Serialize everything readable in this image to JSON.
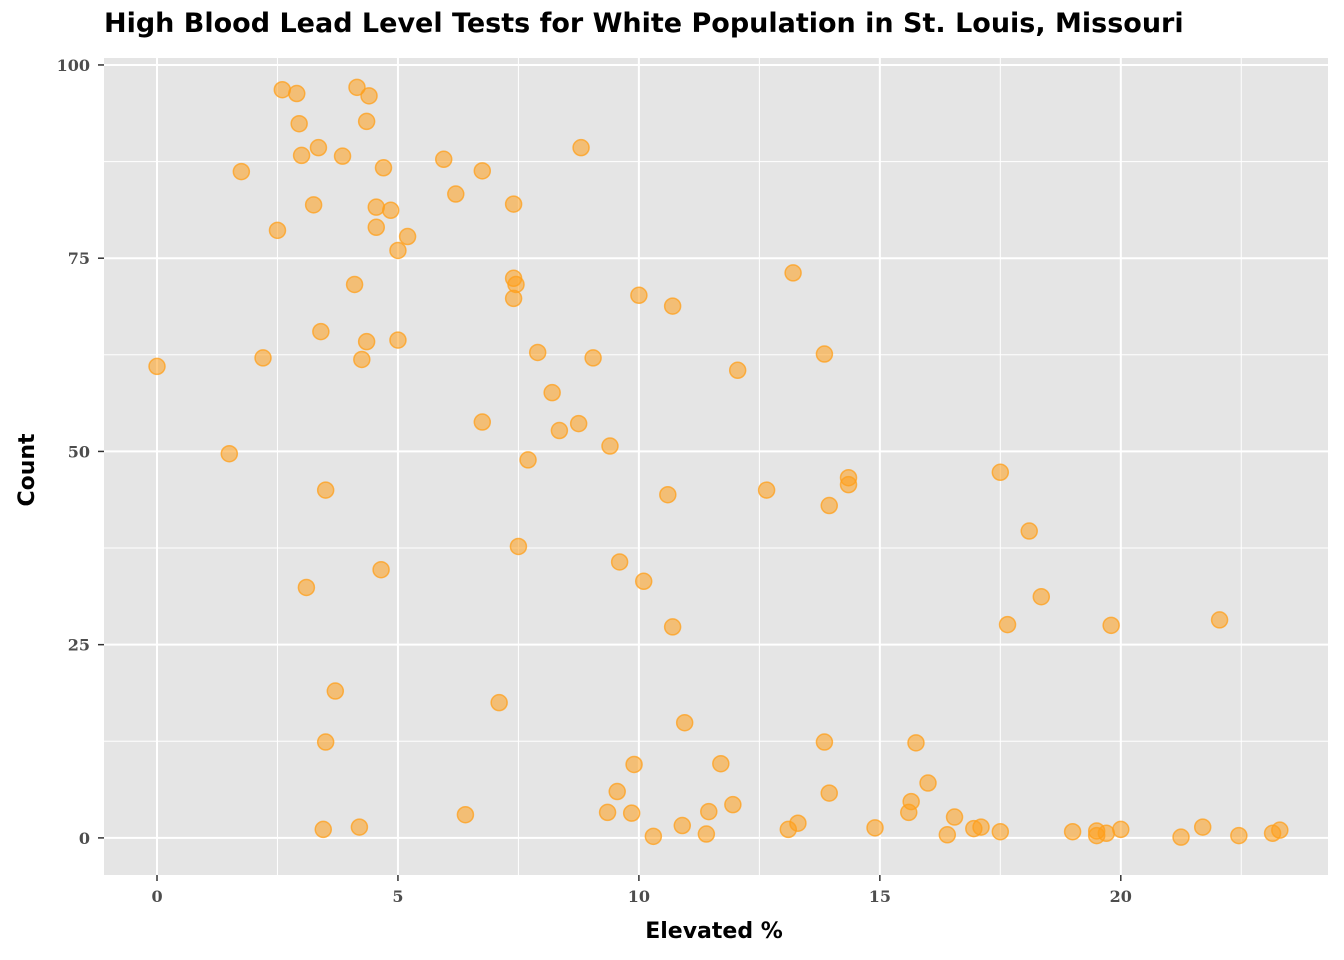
{
  "chart_data": {
    "type": "scatter",
    "title": "High Blood Lead Level Tests for White Population in St. Louis, Missouri",
    "xlabel": "Elevated %",
    "ylabel": "Count",
    "xlim": [
      -1.1,
      24.3
    ],
    "ylim": [
      -4.8,
      100.9
    ],
    "xticks": [
      0,
      5,
      10,
      15,
      20
    ],
    "yticks": [
      0,
      25,
      50,
      75,
      100
    ],
    "grid": true,
    "point_color": "#ff9f1a",
    "panel_background": "#e5e5e5",
    "points": [
      [
        0.0,
        61.0
      ],
      [
        1.5,
        49.7
      ],
      [
        1.75,
        86.2
      ],
      [
        2.2,
        62.1
      ],
      [
        2.5,
        78.6
      ],
      [
        2.6,
        96.8
      ],
      [
        2.9,
        96.3
      ],
      [
        2.95,
        92.4
      ],
      [
        3.0,
        88.3
      ],
      [
        3.1,
        32.4
      ],
      [
        3.25,
        81.9
      ],
      [
        3.35,
        89.3
      ],
      [
        3.4,
        65.5
      ],
      [
        3.45,
        1.1
      ],
      [
        3.5,
        12.4
      ],
      [
        3.5,
        45.0
      ],
      [
        3.7,
        19.0
      ],
      [
        3.85,
        88.2
      ],
      [
        4.1,
        71.6
      ],
      [
        4.15,
        97.1
      ],
      [
        4.2,
        1.4
      ],
      [
        4.25,
        61.9
      ],
      [
        4.35,
        92.7
      ],
      [
        4.35,
        64.2
      ],
      [
        4.4,
        96.0
      ],
      [
        4.55,
        81.6
      ],
      [
        4.55,
        79.0
      ],
      [
        4.65,
        34.7
      ],
      [
        4.7,
        86.7
      ],
      [
        4.85,
        81.2
      ],
      [
        5.0,
        76.0
      ],
      [
        5.0,
        64.4
      ],
      [
        5.2,
        77.8
      ],
      [
        5.95,
        87.8
      ],
      [
        6.2,
        83.3
      ],
      [
        6.4,
        3.0
      ],
      [
        6.75,
        53.8
      ],
      [
        6.75,
        86.3
      ],
      [
        7.1,
        17.5
      ],
      [
        7.4,
        82.0
      ],
      [
        7.4,
        72.4
      ],
      [
        7.45,
        71.6
      ],
      [
        7.4,
        69.8
      ],
      [
        7.5,
        37.7
      ],
      [
        7.7,
        48.9
      ],
      [
        7.9,
        62.8
      ],
      [
        8.2,
        57.6
      ],
      [
        8.35,
        52.7
      ],
      [
        8.75,
        53.6
      ],
      [
        8.8,
        89.3
      ],
      [
        9.05,
        62.1
      ],
      [
        9.35,
        3.3
      ],
      [
        9.4,
        50.7
      ],
      [
        9.55,
        6.0
      ],
      [
        9.6,
        35.7
      ],
      [
        9.85,
        3.2
      ],
      [
        9.9,
        9.5
      ],
      [
        10.0,
        70.2
      ],
      [
        10.1,
        33.2
      ],
      [
        10.3,
        0.2
      ],
      [
        10.6,
        44.4
      ],
      [
        10.7,
        27.3
      ],
      [
        10.7,
        68.8
      ],
      [
        10.9,
        1.6
      ],
      [
        10.95,
        14.9
      ],
      [
        11.4,
        0.5
      ],
      [
        11.45,
        3.4
      ],
      [
        11.7,
        9.6
      ],
      [
        11.95,
        4.3
      ],
      [
        12.05,
        60.5
      ],
      [
        12.65,
        45.0
      ],
      [
        13.1,
        1.1
      ],
      [
        13.2,
        73.1
      ],
      [
        13.3,
        1.9
      ],
      [
        13.85,
        12.4
      ],
      [
        13.85,
        62.6
      ],
      [
        13.95,
        5.8
      ],
      [
        13.95,
        43.0
      ],
      [
        14.35,
        45.7
      ],
      [
        14.35,
        46.6
      ],
      [
        14.9,
        1.3
      ],
      [
        15.6,
        3.3
      ],
      [
        15.65,
        4.7
      ],
      [
        15.75,
        12.3
      ],
      [
        16.0,
        7.1
      ],
      [
        16.4,
        0.4
      ],
      [
        16.55,
        2.7
      ],
      [
        16.95,
        1.2
      ],
      [
        17.1,
        1.4
      ],
      [
        17.5,
        0.8
      ],
      [
        17.5,
        47.3
      ],
      [
        17.65,
        27.6
      ],
      [
        18.1,
        39.7
      ],
      [
        18.35,
        31.2
      ],
      [
        19.0,
        0.8
      ],
      [
        19.5,
        0.9
      ],
      [
        19.5,
        0.3
      ],
      [
        19.7,
        0.6
      ],
      [
        19.8,
        27.5
      ],
      [
        20.0,
        1.1
      ],
      [
        21.25,
        0.1
      ],
      [
        21.7,
        1.4
      ],
      [
        22.05,
        28.2
      ],
      [
        22.45,
        0.3
      ],
      [
        23.15,
        0.6
      ],
      [
        23.3,
        1.0
      ]
    ]
  }
}
